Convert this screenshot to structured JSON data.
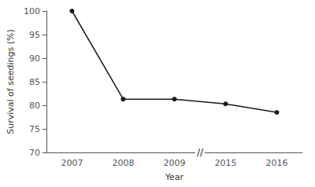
{
  "chart_data": {
    "type": "line",
    "categories": [
      "2007",
      "2008",
      "2009",
      "2015",
      "2016"
    ],
    "values": [
      100,
      81.3,
      81.3,
      80.3,
      78.5
    ],
    "xlabel": "Year",
    "ylabel": "Survival of seedings (%)",
    "ylim": [
      70,
      100
    ],
    "yticks": [
      70,
      75,
      80,
      85,
      90,
      95,
      100
    ],
    "color": "#1a1a1a",
    "marker": "circle",
    "grid": false,
    "annotations": [
      {
        "text": "//",
        "between": [
          "2009",
          "2015"
        ]
      }
    ]
  }
}
